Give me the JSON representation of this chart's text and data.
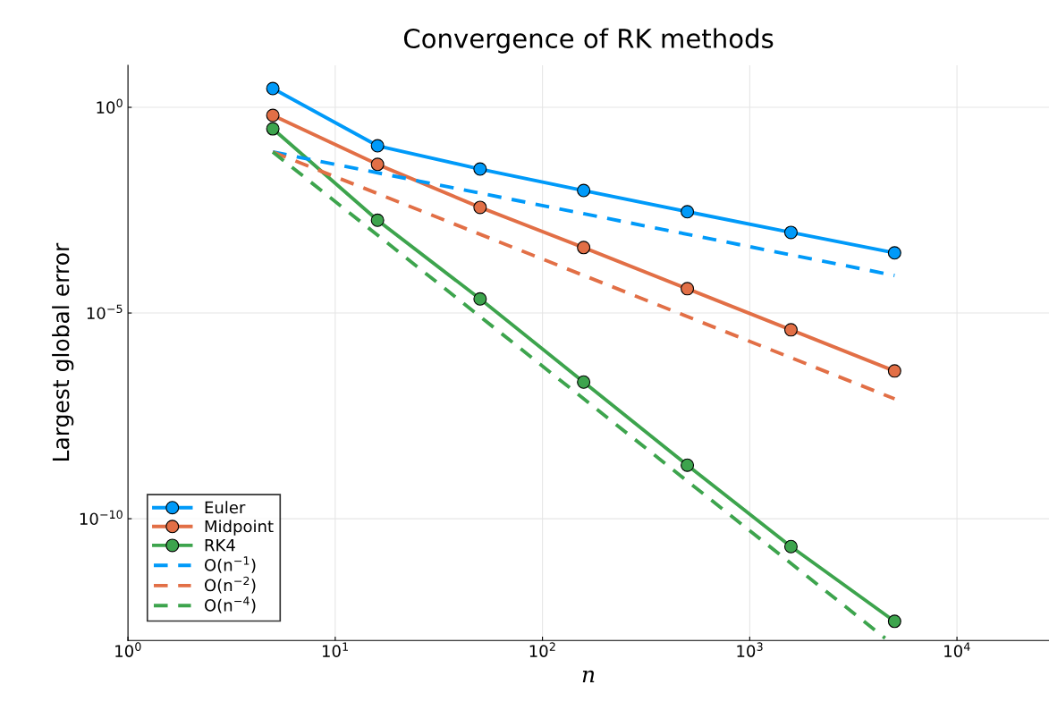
{
  "chart_data": {
    "type": "line",
    "title": "Convergence of RK methods",
    "xlabel": "n",
    "ylabel": "Largest global error",
    "log": "xy",
    "grid": true,
    "legend": "bottom left",
    "marker": "circle",
    "line_style": "solid",
    "x": [
      5,
      16,
      50,
      158,
      500,
      1581,
      5000
    ],
    "xlim": [
      1,
      27800
    ],
    "ylim": [
      1.1e-13,
      10.5
    ],
    "xticks": [
      {
        "value": 1,
        "label": "10$^{0}$"
      },
      {
        "value": 10,
        "label": "10$^{1}$"
      },
      {
        "value": 100,
        "label": "10$^{2}$"
      },
      {
        "value": 1000,
        "label": "10$^{3}$"
      },
      {
        "value": 10000,
        "label": "10$^{4}$"
      }
    ],
    "yticks": [
      {
        "value": 1e-10,
        "label": "10$^{−10}$"
      },
      {
        "value": 1e-05,
        "label": "10$^{−5}$"
      },
      {
        "value": 1,
        "label": "10$^{0}$"
      }
    ],
    "series": [
      {
        "name": "Euler",
        "color": "#009af9",
        "values": [
          2.86,
          0.116,
          0.0316,
          0.0095,
          0.0029,
          0.00091,
          0.00029
        ]
      },
      {
        "name": "Midpoint",
        "color": "#e26f46",
        "values": [
          0.637,
          0.041,
          0.0037,
          0.00039,
          3.9e-05,
          3.9e-06,
          3.9e-07
        ]
      },
      {
        "name": "RK4",
        "color": "#3da44d",
        "values": [
          0.3,
          0.0018,
          2.2e-05,
          2.1e-07,
          2e-09,
          2.1e-11,
          3.2e-13
        ]
      },
      {
        "name": "O(n$^{−1}$)",
        "color": "#009af9",
        "x": [
          5,
          5000
        ],
        "values": [
          0.082,
          8.2e-05
        ],
        "line_style": "dashed",
        "marker": "none"
      },
      {
        "name": "O(n$^{−2}$)",
        "color": "#e26f46",
        "x": [
          5,
          5000
        ],
        "values": [
          0.082,
          8.2e-08
        ],
        "line_style": "dashed",
        "marker": "none"
      },
      {
        "name": "O(n$^{−4}$)",
        "color": "#3da44d",
        "x": [
          5,
          4500
        ],
        "values": [
          0.082,
          1.25e-13
        ],
        "line_style": "dashed",
        "marker": "none"
      }
    ]
  }
}
